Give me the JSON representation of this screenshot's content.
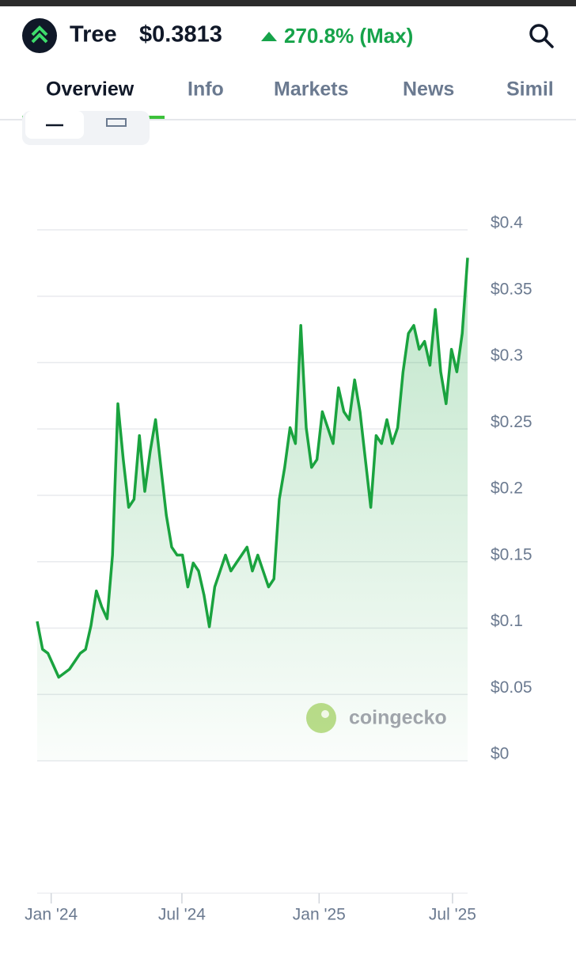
{
  "header": {
    "coin": "Tree",
    "price": "$0.3813",
    "change": "270.8% (Max)"
  },
  "tabs": [
    "Overview",
    "Info",
    "Markets",
    "News",
    "Simil"
  ],
  "watermark": "coingecko",
  "chart_data": {
    "type": "area",
    "series": [
      {
        "color": "#1aa33f",
        "values": [
          0.105,
          0.084,
          0.081,
          0.072,
          0.063,
          0.066,
          0.069,
          0.075,
          0.081,
          0.084,
          0.102,
          0.128,
          0.116,
          0.107,
          0.155,
          0.269,
          0.227,
          0.191,
          0.197,
          0.245,
          0.203,
          0.233,
          0.257,
          0.221,
          0.185,
          0.161,
          0.155,
          0.155,
          0.131,
          0.149,
          0.143,
          0.125,
          0.101,
          0.131,
          0.143,
          0.155,
          0.143,
          0.149,
          0.155,
          0.161,
          0.143,
          0.155,
          0.143,
          0.131,
          0.137,
          0.197,
          0.221,
          0.251,
          0.239,
          0.328,
          0.251,
          0.221,
          0.227,
          0.263,
          0.251,
          0.239,
          0.281,
          0.263,
          0.257,
          0.287,
          0.263,
          0.227,
          0.191,
          0.245,
          0.239,
          0.257,
          0.239,
          0.251,
          0.293,
          0.322,
          0.328,
          0.31,
          0.316,
          0.298,
          0.34,
          0.293,
          0.269,
          0.31,
          0.293,
          0.322,
          0.379
        ]
      }
    ],
    "xlim": [
      0,
      80
    ],
    "xticks": [
      {
        "value": 2.6,
        "label": "Jan '24"
      },
      {
        "value": 26.9,
        "label": "Jul '24"
      },
      {
        "value": 52.4,
        "label": "Jan '25"
      },
      {
        "value": 77.2,
        "label": "Jul '25"
      }
    ],
    "ylim": [
      0,
      0.4
    ],
    "yticks": [
      {
        "value": 0,
        "label": "$0"
      },
      {
        "value": 0.05,
        "label": "$0.05"
      },
      {
        "value": 0.1,
        "label": "$0.1"
      },
      {
        "value": 0.15,
        "label": "$0.15"
      },
      {
        "value": 0.2,
        "label": "$0.2"
      },
      {
        "value": 0.25,
        "label": "$0.25"
      },
      {
        "value": 0.3,
        "label": "$0.3"
      },
      {
        "value": 0.35,
        "label": "$0.35"
      },
      {
        "value": 0.4,
        "label": "$0.4"
      }
    ],
    "grid": true
  }
}
